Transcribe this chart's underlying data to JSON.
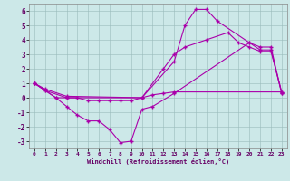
{
  "xlabel": "Windchill (Refroidissement éolien,°C)",
  "bg_color": "#cce8e8",
  "line_color": "#aa00aa",
  "xlim": [
    -0.5,
    23.5
  ],
  "ylim": [
    -3.5,
    6.5
  ],
  "yticks": [
    -3,
    -2,
    -1,
    0,
    1,
    2,
    3,
    4,
    5,
    6
  ],
  "xticks": [
    0,
    1,
    2,
    3,
    4,
    5,
    6,
    7,
    8,
    9,
    10,
    11,
    12,
    13,
    14,
    15,
    16,
    17,
    18,
    19,
    20,
    21,
    22,
    23
  ],
  "line1_x": [
    0,
    1,
    3,
    10,
    13,
    14,
    15,
    16,
    17,
    20,
    21,
    22,
    23
  ],
  "line1_y": [
    1.0,
    0.6,
    0.1,
    0.0,
    2.5,
    5.0,
    6.1,
    6.1,
    5.3,
    3.8,
    3.3,
    3.3,
    0.3
  ],
  "line2_x": [
    0,
    2,
    3,
    4,
    5,
    6,
    7,
    8,
    9,
    10,
    11,
    13,
    20,
    21,
    22,
    23
  ],
  "line2_y": [
    1.0,
    0.0,
    -0.6,
    -1.2,
    -1.6,
    -1.6,
    -2.2,
    -3.1,
    -3.0,
    -0.8,
    -0.6,
    0.3,
    3.8,
    3.5,
    3.5,
    0.3
  ],
  "line3_x": [
    0,
    1,
    3,
    10,
    12,
    13,
    14,
    16,
    18,
    19,
    20,
    21,
    22,
    23
  ],
  "line3_y": [
    1.0,
    0.5,
    0.0,
    0.0,
    2.0,
    3.0,
    3.5,
    4.0,
    4.5,
    3.8,
    3.5,
    3.2,
    3.2,
    0.4
  ],
  "line4_x": [
    0,
    1,
    2,
    3,
    4,
    5,
    6,
    7,
    8,
    9,
    10,
    11,
    12,
    13,
    23
  ],
  "line4_y": [
    1.0,
    0.5,
    0.0,
    0.0,
    0.0,
    -0.2,
    -0.2,
    -0.2,
    -0.2,
    -0.2,
    0.0,
    0.2,
    0.3,
    0.4,
    0.4
  ]
}
